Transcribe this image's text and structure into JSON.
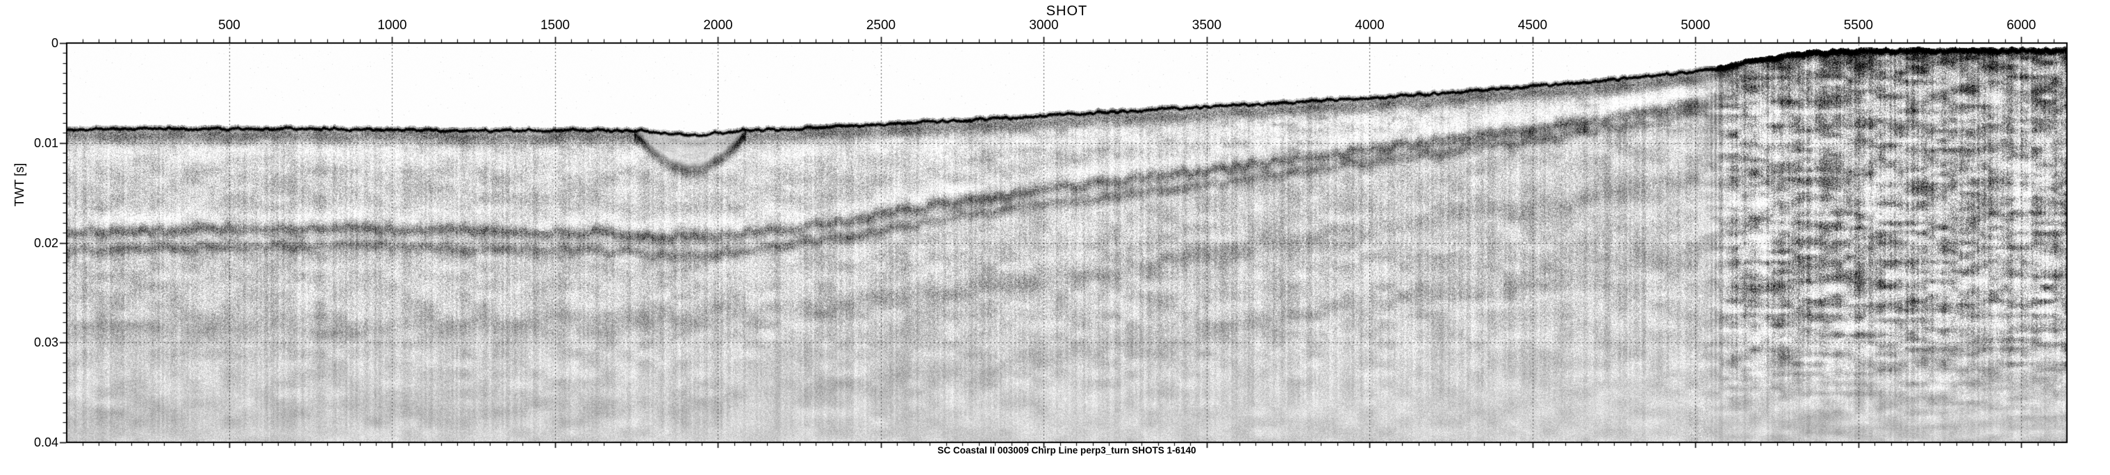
{
  "chart_data": {
    "type": "heatmap",
    "subtype": "chirp-seismic-reflection-profile",
    "palette": "grayscale",
    "xlabel": "SHOT",
    "ylabel": "TWT [s]",
    "caption": "SC Coastal II 003009 Chirp Line perp3_turn SHOTS 1-6140",
    "xlim": [
      1,
      6140
    ],
    "ylim": [
      0,
      0.04
    ],
    "y_axis_direction": "down",
    "x_ticks": [
      500,
      1000,
      1500,
      2000,
      2500,
      3000,
      3500,
      4000,
      4500,
      5000,
      5500,
      6000
    ],
    "x_minor_tick_step": 50,
    "y_ticks": [
      0,
      0.01,
      0.02,
      0.03,
      0.04
    ],
    "y_tick_labels": [
      "0",
      "0.01",
      "0.02",
      "0.03",
      "0.04"
    ],
    "y_minor_tick_step": 0.001,
    "grid": {
      "style": "dotted",
      "vertical_at": [
        500,
        1000,
        1500,
        2000,
        2500,
        3000,
        3500,
        4000,
        4500,
        5000,
        5500,
        6000
      ],
      "horizontal_at": [
        0.01,
        0.02,
        0.03
      ]
    },
    "horizons": {
      "seafloor": {
        "shots": [
          1,
          150,
          400,
          700,
          1000,
          1300,
          1600,
          1760,
          1915,
          2070,
          2300,
          2600,
          2900,
          3200,
          3500,
          3800,
          4100,
          4400,
          4600,
          4800,
          5000,
          5100,
          5200,
          5350,
          5500,
          5800,
          6140
        ],
        "twt_s": [
          0.0087,
          0.0086,
          0.0086,
          0.0086,
          0.0087,
          0.0088,
          0.0087,
          0.0088,
          0.0093,
          0.0088,
          0.0085,
          0.008,
          0.0075,
          0.0069,
          0.0064,
          0.0059,
          0.0053,
          0.0046,
          0.0041,
          0.0035,
          0.0029,
          0.0024,
          0.0017,
          0.0011,
          0.0009,
          0.0008,
          0.0008
        ]
      },
      "reflector_1": {
        "shots": [
          1,
          400,
          800,
          1200,
          1600,
          1915,
          2100,
          2400,
          2700,
          3000,
          3300,
          3600,
          3900,
          4200,
          4500,
          4800,
          5000,
          5200
        ],
        "twt_s": [
          0.019,
          0.0187,
          0.0185,
          0.0188,
          0.019,
          0.0195,
          0.0191,
          0.0178,
          0.0161,
          0.0147,
          0.0136,
          0.0124,
          0.0111,
          0.0099,
          0.0087,
          0.0072,
          0.0062,
          0.005
        ]
      },
      "reflector_2": {
        "shots": [
          1,
          400,
          800,
          1200,
          1600,
          1915,
          2100,
          2400,
          2700,
          3000,
          3300,
          3600,
          3900,
          4200,
          4500,
          4800,
          5000,
          5200
        ],
        "twt_s": [
          0.0208,
          0.0205,
          0.0203,
          0.0206,
          0.0208,
          0.0214,
          0.0208,
          0.0194,
          0.0176,
          0.0163,
          0.015,
          0.0138,
          0.0124,
          0.0111,
          0.0098,
          0.0083,
          0.0073,
          0.006
        ]
      },
      "reflector_3": {
        "shots": [
          1,
          600,
          1200,
          1800,
          2400,
          3000,
          3600,
          4200,
          4700,
          5100
        ],
        "twt_s": [
          0.029,
          0.0287,
          0.0283,
          0.028,
          0.0262,
          0.0236,
          0.0208,
          0.0179,
          0.0153,
          0.0136
        ]
      },
      "reflector_4": {
        "shots": [
          1,
          600,
          1200,
          1800,
          2400,
          3000,
          3600,
          4200,
          4700,
          5100
        ],
        "twt_s": [
          0.0377,
          0.0374,
          0.037,
          0.0364,
          0.0344,
          0.0315,
          0.0284,
          0.0252,
          0.0226,
          0.0206
        ]
      }
    },
    "features": {
      "buried_channel": {
        "center_shot": 1915,
        "half_width_shots": 185,
        "base_twt_s": 0.0128,
        "fill": "acoustically transparent"
      },
      "noisy_turn_zone": {
        "start_shot": 4980,
        "end_shot": 6140,
        "description": "chaotic high-amplitude returns near line turn"
      }
    }
  },
  "colors": {
    "ink": "#000000",
    "paper": "#ffffff"
  }
}
